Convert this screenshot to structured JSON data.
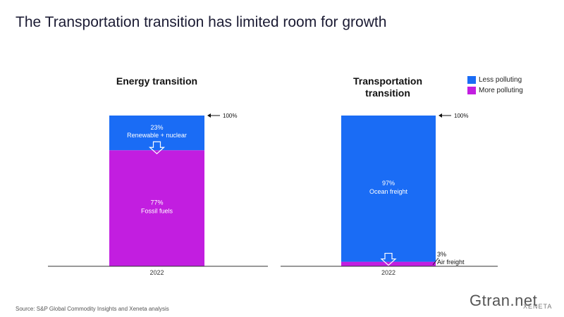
{
  "title": "The Transportation transition has limited room for growth",
  "legend": [
    {
      "label": "Less polluting",
      "color": "#1a6cf5"
    },
    {
      "label": "More polluting",
      "color": "#c21ee0"
    }
  ],
  "source": "Source: S&P Global Commodity Insights and Xeneta analysis",
  "watermark": {
    "main": "Gtran.net",
    "sub": "XENETA"
  },
  "chart_data": [
    {
      "type": "bar",
      "title": "Energy transition",
      "categories": [
        "2022"
      ],
      "series": [
        {
          "name": "More polluting",
          "values": [
            77
          ],
          "label": "Fossil fuels",
          "value_label": "77%"
        },
        {
          "name": "Less polluting",
          "values": [
            23
          ],
          "label": "Renewable + nuclear",
          "value_label": "23%"
        }
      ],
      "top_marker": "100%",
      "ylim": [
        0,
        100
      ]
    },
    {
      "type": "bar",
      "title": "Transportation transition",
      "categories": [
        "2022"
      ],
      "series": [
        {
          "name": "More polluting",
          "values": [
            3
          ],
          "label": "Air freight",
          "value_label": "3%"
        },
        {
          "name": "Less polluting",
          "values": [
            97
          ],
          "label": "Ocean freight",
          "value_label": "97%"
        }
      ],
      "top_marker": "100%",
      "ylim": [
        0,
        100
      ]
    }
  ]
}
